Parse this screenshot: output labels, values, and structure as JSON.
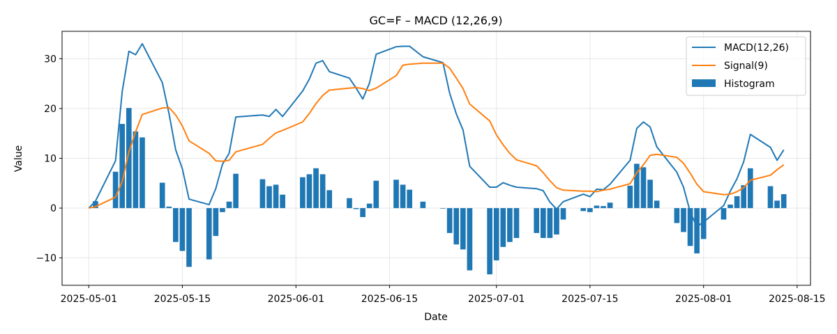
{
  "chart_data": {
    "type": "line",
    "title": "GC=F – MACD (12,26,9)",
    "xlabel": "Date",
    "ylabel": "Value",
    "grid": true,
    "legend_position": "top-right",
    "x_range": [
      "2025-04-27",
      "2025-08-17"
    ],
    "ylim": [
      -15.5,
      35.5
    ],
    "x_ticks": [
      "2025-05-01",
      "2025-05-15",
      "2025-06-01",
      "2025-06-15",
      "2025-07-01",
      "2025-07-15",
      "2025-08-01",
      "2025-08-15"
    ],
    "y_ticks": [
      -10,
      0,
      10,
      20,
      30
    ],
    "y_tick_labels": [
      "−10",
      "0",
      "10",
      "20",
      "30"
    ],
    "dates": [
      "2025-05-01",
      "2025-05-02",
      "2025-05-05",
      "2025-05-06",
      "2025-05-07",
      "2025-05-08",
      "2025-05-09",
      "2025-05-12",
      "2025-05-13",
      "2025-05-14",
      "2025-05-15",
      "2025-05-16",
      "2025-05-19",
      "2025-05-20",
      "2025-05-21",
      "2025-05-22",
      "2025-05-23",
      "2025-05-27",
      "2025-05-28",
      "2025-05-29",
      "2025-05-30",
      "2025-06-02",
      "2025-06-03",
      "2025-06-04",
      "2025-06-05",
      "2025-06-06",
      "2025-06-09",
      "2025-06-10",
      "2025-06-11",
      "2025-06-12",
      "2025-06-13",
      "2025-06-16",
      "2025-06-17",
      "2025-06-18",
      "2025-06-20",
      "2025-06-23",
      "2025-06-24",
      "2025-06-25",
      "2025-06-26",
      "2025-06-27",
      "2025-06-30",
      "2025-07-01",
      "2025-07-02",
      "2025-07-03",
      "2025-07-04",
      "2025-07-07",
      "2025-07-08",
      "2025-07-09",
      "2025-07-10",
      "2025-07-11",
      "2025-07-14",
      "2025-07-15",
      "2025-07-16",
      "2025-07-17",
      "2025-07-18",
      "2025-07-21",
      "2025-07-22",
      "2025-07-23",
      "2025-07-24",
      "2025-07-25",
      "2025-07-28",
      "2025-07-29",
      "2025-07-30",
      "2025-07-31",
      "2025-08-01",
      "2025-08-04",
      "2025-08-05",
      "2025-08-06",
      "2025-08-07",
      "2025-08-08",
      "2025-08-11",
      "2025-08-12",
      "2025-08-13"
    ],
    "series": [
      {
        "name": "MACD(12,26)",
        "kind": "line",
        "color": "#1f77b4",
        "values": [
          0.0,
          1.4,
          9.5,
          23.4,
          31.5,
          30.8,
          33.0,
          25.2,
          19.0,
          11.7,
          7.9,
          1.8,
          0.7,
          3.9,
          8.8,
          11.0,
          18.3,
          18.7,
          18.4,
          19.8,
          18.4,
          23.5,
          25.9,
          29.1,
          29.6,
          27.4,
          26.1,
          24.1,
          21.9,
          25.1,
          30.9,
          32.4,
          32.5,
          32.5,
          30.4,
          29.2,
          23.1,
          18.9,
          15.7,
          8.4,
          4.2,
          4.2,
          5.1,
          4.6,
          4.2,
          3.9,
          3.5,
          1.2,
          -0.2,
          1.3,
          2.8,
          2.3,
          3.8,
          3.7,
          4.8,
          9.6,
          16.0,
          17.3,
          16.3,
          12.3,
          7.2,
          4.2,
          -0.8,
          -3.7,
          -2.8,
          0.5,
          3.4,
          5.9,
          9.3,
          14.8,
          12.2,
          9.6,
          11.7
        ]
      },
      {
        "name": "Signal(9)",
        "kind": "line",
        "color": "#ff7f0e",
        "values": [
          0.0,
          0.3,
          2.2,
          5.3,
          11.3,
          15.3,
          18.8,
          20.1,
          20.2,
          18.7,
          16.5,
          13.5,
          11.0,
          9.5,
          9.4,
          9.6,
          11.3,
          12.8,
          14.0,
          15.1,
          15.6,
          17.3,
          19.0,
          21.0,
          22.6,
          23.7,
          24.1,
          24.2,
          24.0,
          23.6,
          24.1,
          26.6,
          28.7,
          28.9,
          29.1,
          29.1,
          28.1,
          26.1,
          24.0,
          20.9,
          17.5,
          14.7,
          12.7,
          11.0,
          9.7,
          8.5,
          7.1,
          5.5,
          4.1,
          3.6,
          3.4,
          3.4,
          3.3,
          3.6,
          3.8,
          4.9,
          7.1,
          8.7,
          10.6,
          10.8,
          10.2,
          9.0,
          7.0,
          4.8,
          3.3,
          2.7,
          2.8,
          3.3,
          4.1,
          5.6,
          6.6,
          7.7,
          8.7
        ]
      },
      {
        "name": "Histogram",
        "kind": "bar",
        "color": "#1f77b4",
        "values": [
          0.0,
          1.4,
          7.3,
          16.9,
          20.1,
          15.4,
          14.2,
          5.1,
          0.3,
          -6.8,
          -8.6,
          -11.8,
          -10.3,
          -5.6,
          -0.8,
          1.3,
          6.9,
          5.8,
          4.4,
          4.7,
          2.7,
          6.2,
          6.8,
          8.0,
          6.8,
          3.6,
          2.0,
          -0.2,
          -1.8,
          0.9,
          5.5,
          5.7,
          4.7,
          3.7,
          1.3,
          -0.1,
          -5.0,
          -7.3,
          -8.3,
          -12.5,
          -13.3,
          -10.5,
          -7.8,
          -6.8,
          -6.0,
          -5.0,
          -6.0,
          -6.0,
          -5.3,
          -2.3,
          -0.6,
          -0.8,
          0.5,
          0.4,
          1.1,
          4.5,
          8.9,
          8.2,
          5.7,
          1.5,
          -3.0,
          -4.8,
          -7.6,
          -9.1,
          -6.2,
          -2.3,
          0.7,
          2.4,
          4.6,
          8.0,
          4.4,
          1.5,
          2.8
        ]
      }
    ]
  }
}
